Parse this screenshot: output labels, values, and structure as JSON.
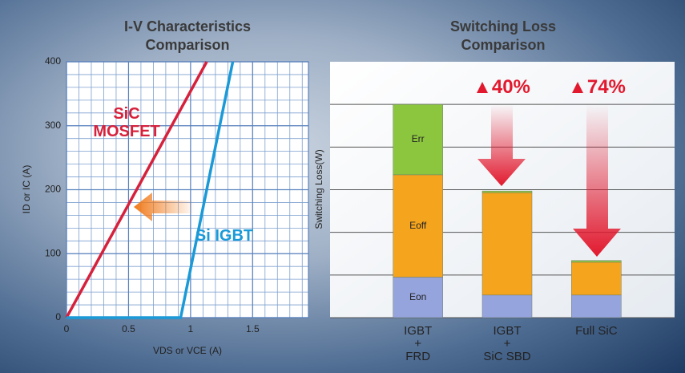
{
  "chart_data": [
    {
      "type": "line",
      "title": "I-V Characteristics Comparison",
      "x_label": "VDS or VCE (A)",
      "y_label": "ID or IC (A)",
      "xlim": [
        0,
        1.95
      ],
      "xticks": [
        0,
        0.5,
        1,
        1.5
      ],
      "ylim": [
        0,
        400
      ],
      "yticks": [
        0,
        100,
        200,
        300,
        400
      ],
      "grid": true,
      "series": [
        {
          "name": "SiC MOSFET",
          "color": "#d6213c",
          "x": [
            0,
            1.13
          ],
          "values": [
            0,
            400
          ]
        },
        {
          "name": "Si IGBT",
          "color": "#1b9ad8",
          "x": [
            0,
            0.92,
            1.34
          ],
          "values": [
            0,
            0,
            400
          ]
        }
      ]
    },
    {
      "type": "stacked_bar",
      "title": "Switching Loss Comparison",
      "y_label": "Switching Loss(W)",
      "categories": [
        "IGBT\n+\nFRD",
        "IGBT\n+\nSiC SBD",
        "Full SiC"
      ],
      "ylim": [
        0,
        6
      ],
      "ygrid": [
        1,
        2,
        3,
        4,
        5
      ],
      "series": [
        {
          "name": "Eon",
          "color": "#96a4de",
          "values": [
            0.95,
            0.53,
            0.53
          ]
        },
        {
          "name": "Eoff",
          "color": "#f5a51d",
          "values": [
            2.4,
            2.4,
            0.77
          ]
        },
        {
          "name": "Err",
          "color": "#8cc63f",
          "values": [
            1.65,
            0.04,
            0.04
          ]
        }
      ],
      "annotations": [
        "▲40%",
        "▲74%"
      ]
    }
  ]
}
